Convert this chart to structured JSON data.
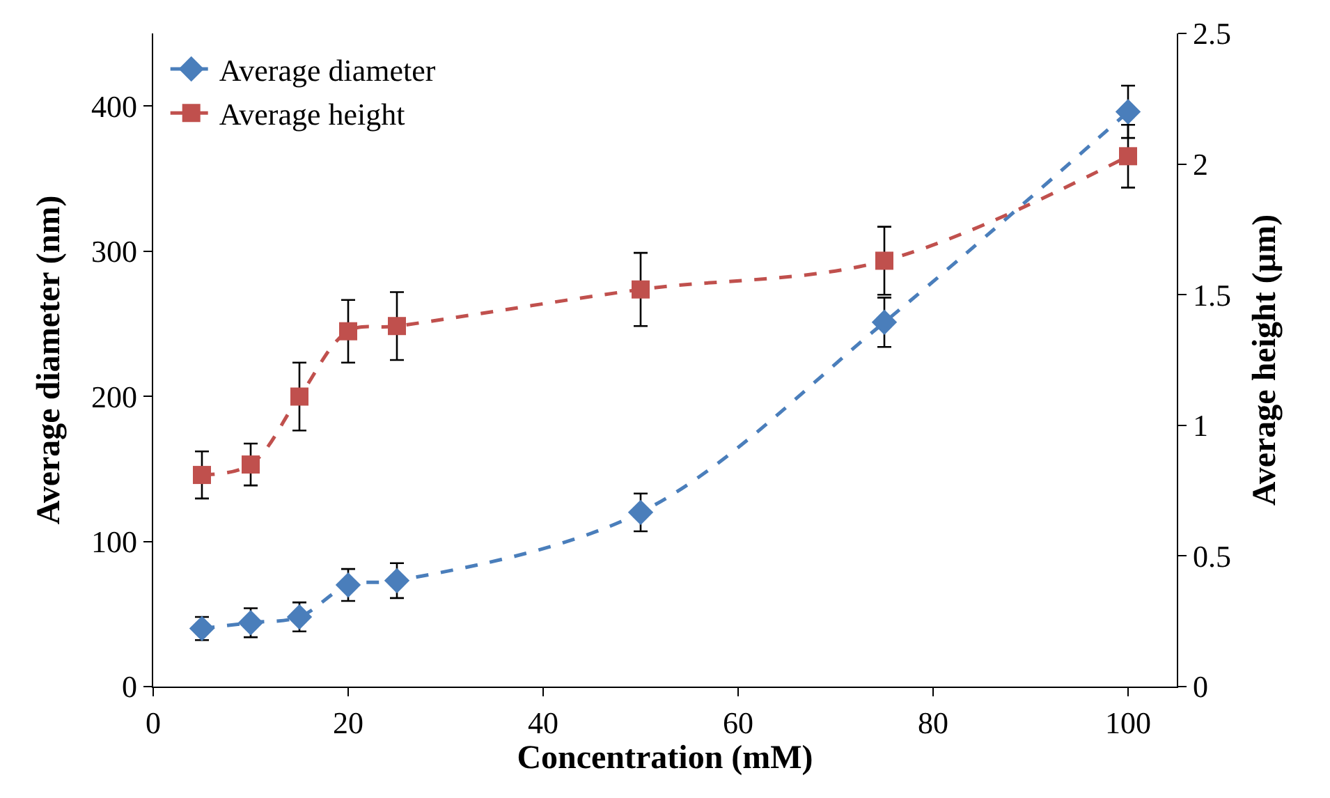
{
  "chart_data": {
    "type": "line",
    "xlabel": "Concentration (mM)",
    "ylabel": "Average diameter (nm)",
    "y2label": "Average height (µm)",
    "x": [
      5,
      10,
      15,
      20,
      25,
      50,
      75,
      100
    ],
    "xlim": [
      0,
      105
    ],
    "xticks": [
      0,
      20,
      40,
      60,
      80,
      100
    ],
    "ylim": [
      0,
      450
    ],
    "yticks": [
      0,
      100,
      200,
      300,
      400
    ],
    "y2lim": [
      0,
      2.5
    ],
    "y2ticks": [
      0,
      0.5,
      1,
      1.5,
      2,
      2.5
    ],
    "legend": "top left",
    "line_style": "dashed",
    "series": [
      {
        "name": "Average diameter",
        "color": "#4a7ebb",
        "marker": "diamond",
        "values": [
          40,
          44,
          48,
          70,
          73,
          120,
          251,
          396
        ],
        "errors": [
          8,
          10,
          10,
          11,
          12,
          13,
          17,
          18
        ]
      },
      {
        "name": "Average height",
        "color": "#c0504d",
        "marker": "square",
        "axis": "y2",
        "values": [
          0.81,
          0.85,
          1.11,
          1.36,
          1.38,
          1.52,
          1.63,
          2.03
        ],
        "errors": [
          0.09,
          0.08,
          0.13,
          0.12,
          0.13,
          0.14,
          0.13,
          0.12
        ]
      }
    ]
  }
}
